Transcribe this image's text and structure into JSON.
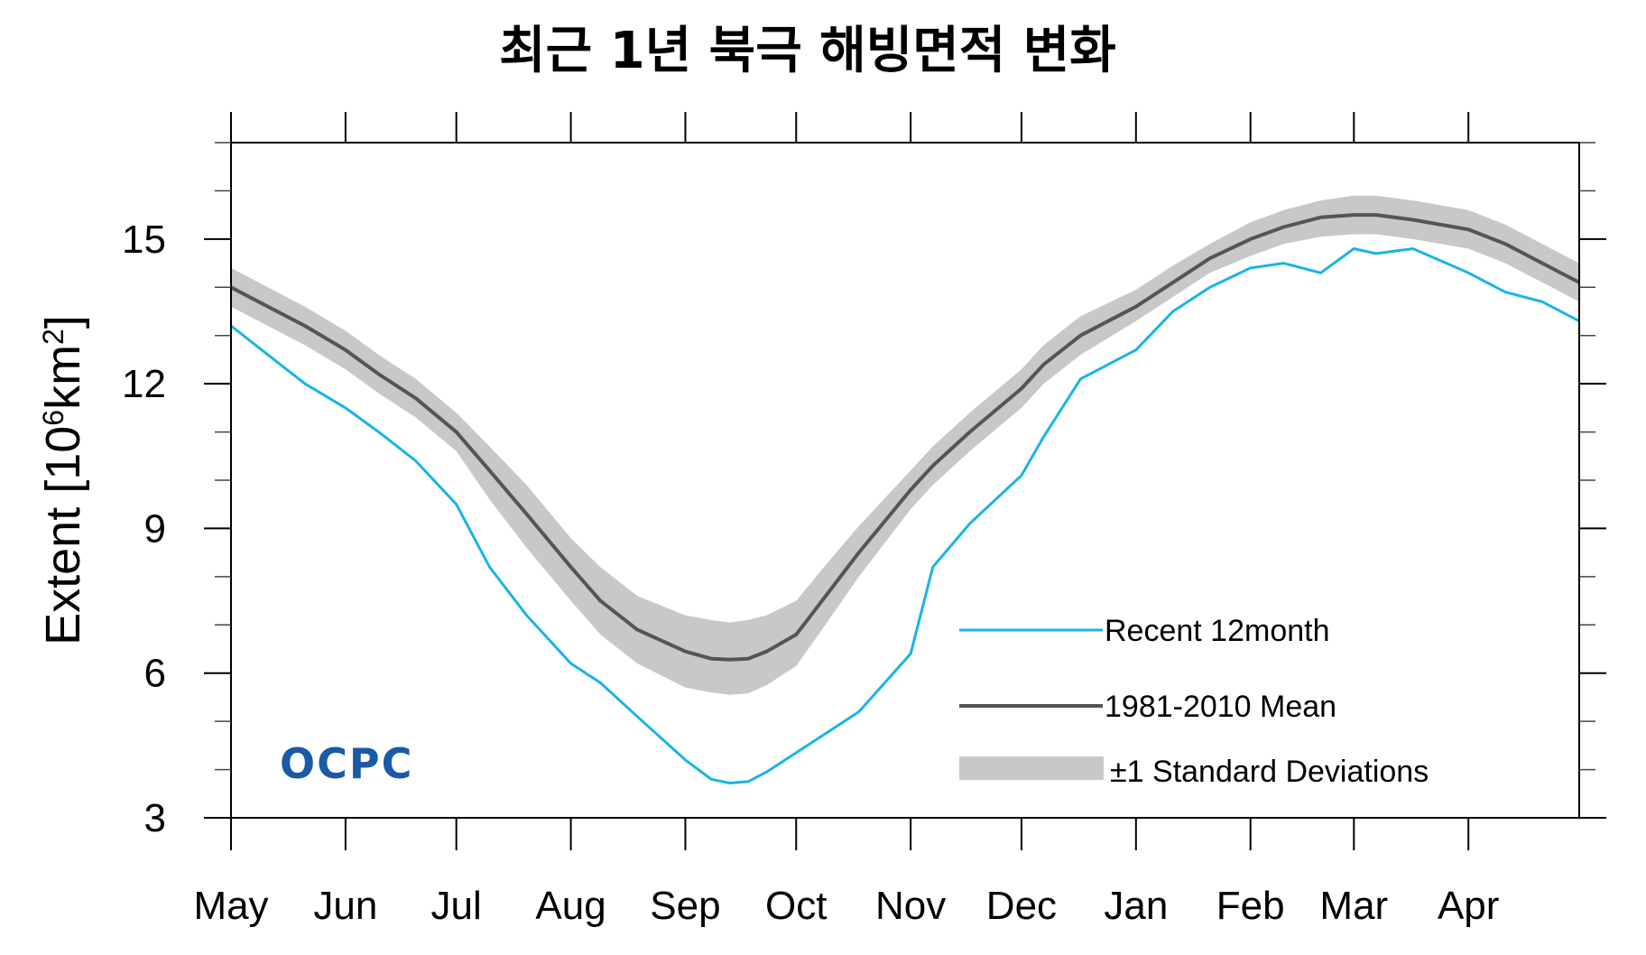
{
  "chart_data": {
    "type": "line",
    "title": "최근 1년 북극 해빙면적 변화",
    "ylabel": "Extent [10⁶km²]",
    "ylabel_parts": {
      "prefix": "Extent [10",
      "exp1": "6",
      "middle": "km",
      "exp2": "2",
      "suffix": "]"
    },
    "ylim": [
      3,
      17
    ],
    "yticks": [
      3,
      6,
      9,
      12,
      15
    ],
    "xlim": [
      0,
      365
    ],
    "month_ticks": [
      {
        "label": "May",
        "day": 0
      },
      {
        "label": "Jun",
        "day": 31
      },
      {
        "label": "Jul",
        "day": 61
      },
      {
        "label": "Aug",
        "day": 92
      },
      {
        "label": "Sep",
        "day": 123
      },
      {
        "label": "Oct",
        "day": 153
      },
      {
        "label": "Nov",
        "day": 184
      },
      {
        "label": "Dec",
        "day": 214
      },
      {
        "label": "Jan",
        "day": 245
      },
      {
        "label": "Feb",
        "day": 276
      },
      {
        "label": "Mar",
        "day": 304
      },
      {
        "label": "Apr",
        "day": 335
      }
    ],
    "x": [
      0,
      10,
      20,
      31,
      40,
      50,
      61,
      70,
      80,
      92,
      100,
      110,
      123,
      130,
      135,
      140,
      145,
      153,
      160,
      170,
      184,
      190,
      200,
      214,
      220,
      230,
      245,
      255,
      265,
      276,
      285,
      295,
      304,
      310,
      320,
      335,
      345,
      355,
      365
    ],
    "series": [
      {
        "name": "Recent 12month",
        "color": "#19b4e8",
        "values": [
          13.2,
          12.6,
          12.0,
          11.5,
          11.0,
          10.4,
          9.5,
          8.2,
          7.2,
          6.2,
          5.8,
          5.1,
          4.2,
          3.8,
          3.72,
          3.75,
          3.95,
          4.35,
          4.7,
          5.2,
          6.4,
          8.2,
          9.1,
          10.1,
          10.9,
          12.1,
          12.7,
          13.5,
          14.0,
          14.4,
          14.5,
          14.3,
          14.8,
          14.7,
          14.8,
          14.3,
          13.9,
          13.7,
          13.3
        ]
      },
      {
        "name": "1981-2010 Mean",
        "color": "#555555",
        "values": [
          14.0,
          13.6,
          13.2,
          12.7,
          12.2,
          11.7,
          11.0,
          10.2,
          9.3,
          8.2,
          7.5,
          6.9,
          6.45,
          6.3,
          6.28,
          6.3,
          6.45,
          6.8,
          7.5,
          8.5,
          9.8,
          10.3,
          11.0,
          11.9,
          12.4,
          13.0,
          13.6,
          14.1,
          14.6,
          15.0,
          15.25,
          15.45,
          15.5,
          15.5,
          15.4,
          15.2,
          14.9,
          14.5,
          14.1
        ]
      }
    ],
    "band": {
      "name": "±1 Standard Deviations",
      "color": "#c8c8c8",
      "lower": [
        13.6,
        13.2,
        12.8,
        12.3,
        11.8,
        11.3,
        10.6,
        9.6,
        8.6,
        7.5,
        6.8,
        6.2,
        5.7,
        5.6,
        5.55,
        5.58,
        5.75,
        6.15,
        6.9,
        8.0,
        9.4,
        9.9,
        10.6,
        11.5,
        12.0,
        12.6,
        13.3,
        13.8,
        14.3,
        14.65,
        14.9,
        15.05,
        15.1,
        15.1,
        15.0,
        14.8,
        14.5,
        14.1,
        13.7
      ],
      "upper": [
        14.4,
        14.0,
        13.6,
        13.1,
        12.6,
        12.1,
        11.4,
        10.7,
        9.9,
        8.8,
        8.2,
        7.6,
        7.2,
        7.1,
        7.05,
        7.1,
        7.2,
        7.5,
        8.15,
        9.05,
        10.2,
        10.7,
        11.4,
        12.3,
        12.8,
        13.4,
        13.95,
        14.45,
        14.9,
        15.35,
        15.6,
        15.8,
        15.9,
        15.9,
        15.8,
        15.6,
        15.3,
        14.9,
        14.5
      ]
    },
    "legend": {
      "position": "bottom-right",
      "items": [
        {
          "label": "Recent 12month",
          "kind": "line",
          "color": "#19b4e8"
        },
        {
          "label": "1981-2010 Mean",
          "kind": "line",
          "color": "#555555"
        },
        {
          "label": "±1 Standard Deviations",
          "kind": "band",
          "color": "#c8c8c8"
        }
      ]
    },
    "logo": "OCPC"
  }
}
